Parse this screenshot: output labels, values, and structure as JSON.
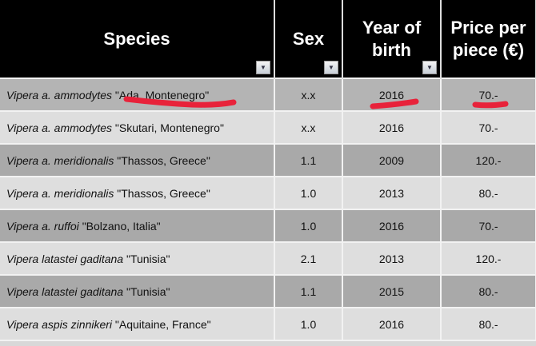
{
  "headers": {
    "species": "Species",
    "sex": "Sex",
    "year": "Year of birth",
    "price": "Price per piece (€)"
  },
  "rows": [
    {
      "genus": "Vipera a. ammodytes",
      "locality": "\"Ada, Montenegro\"",
      "sex": "x.x",
      "year": "2016",
      "price": "70.-"
    },
    {
      "genus": "Vipera a. ammodytes",
      "locality": "\"Skutari, Montenegro\"",
      "sex": "x.x",
      "year": "2016",
      "price": "70.-"
    },
    {
      "genus": "Vipera a. meridionalis",
      "locality": "\"Thassos, Greece\"",
      "sex": "1.1",
      "year": "2009",
      "price": "120.-"
    },
    {
      "genus": "Vipera a. meridionalis",
      "locality": "\"Thassos, Greece\"",
      "sex": "1.0",
      "year": "2013",
      "price": "80.-"
    },
    {
      "genus": "Vipera a. ruffoi",
      "locality": "\"Bolzano, Italia\"",
      "sex": "1.0",
      "year": "2016",
      "price": "70.-"
    },
    {
      "genus": "Vipera latastei gaditana",
      "locality": "\"Tunisia\"",
      "sex": "2.1",
      "year": "2013",
      "price": "120.-"
    },
    {
      "genus": "Vipera latastei gaditana",
      "locality": "\"Tunisia\"",
      "sex": "1.1",
      "year": "2015",
      "price": "80.-"
    },
    {
      "genus": "Vipera aspis zinnikeri",
      "locality": "\"Aquitaine, France\"",
      "sex": "1.0",
      "year": "2016",
      "price": "80.-"
    }
  ],
  "annotation_color": "#e8223a",
  "filter_icon": "dropdown-arrow"
}
